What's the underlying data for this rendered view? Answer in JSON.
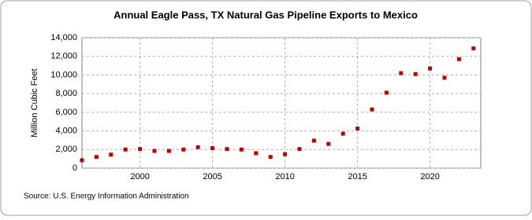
{
  "chart_data": {
    "type": "scatter",
    "title": "Annual Eagle Pass, TX Natural Gas Pipeline Exports to Mexico",
    "y_label": "Million Cubic Feet",
    "source": "Source: U.S. Energy Information Administration",
    "x": [
      1996,
      1997,
      1998,
      1999,
      2000,
      2001,
      2002,
      2003,
      2004,
      2005,
      2006,
      2007,
      2008,
      2009,
      2010,
      2011,
      2012,
      2013,
      2014,
      2015,
      2016,
      2017,
      2018,
      2019,
      2020,
      2021,
      2022,
      2023
    ],
    "values": [
      850,
      1200,
      1450,
      2000,
      2050,
      1850,
      1850,
      2000,
      2250,
      2150,
      2050,
      2000,
      1600,
      1200,
      1500,
      2050,
      2950,
      2600,
      3700,
      4250,
      6300,
      8100,
      10200,
      10100,
      10700,
      9700,
      11700,
      12850
    ],
    "color": "#c00000",
    "xlim": [
      1996,
      2023.5
    ],
    "xticks": [
      2000,
      2005,
      2010,
      2015,
      2020
    ],
    "ylim": [
      0,
      14000
    ],
    "yticks": [
      0,
      {
        "value": 2000,
        "label": "2,000"
      },
      {
        "value": 4000,
        "label": "4,000"
      },
      {
        "value": 6000,
        "label": "6,000"
      },
      {
        "value": 8000,
        "label": "8,000"
      },
      {
        "value": 10000,
        "label": "10,000"
      },
      {
        "value": 12000,
        "label": "12,000"
      },
      {
        "value": 14000,
        "label": "14,000"
      }
    ],
    "grid": true
  }
}
